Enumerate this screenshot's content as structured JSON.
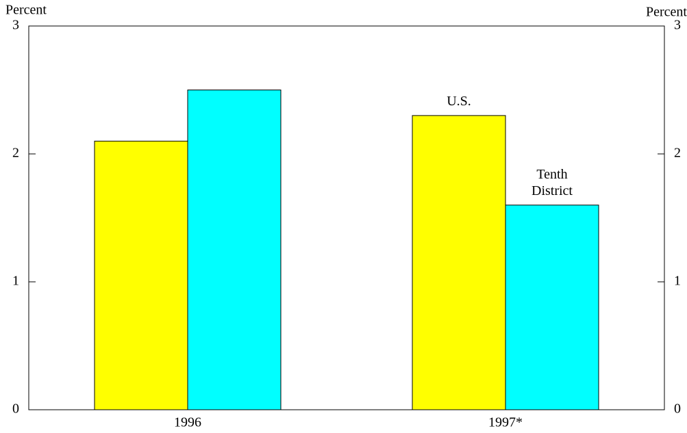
{
  "chart_data": {
    "type": "bar",
    "y_label": "Percent",
    "y2_label": "Percent",
    "categories": [
      "1996",
      "1997*"
    ],
    "series": [
      {
        "name": "U.S.",
        "color": "#ffff00",
        "values": [
          2.1,
          2.3
        ]
      },
      {
        "name": "Tenth District",
        "color": "#00ffff",
        "values": [
          2.5,
          1.6
        ]
      }
    ],
    "ylim": [
      0,
      3
    ],
    "yticks": [
      0,
      1,
      2,
      3
    ],
    "y2lim": [
      0,
      3
    ],
    "y2ticks": [
      0,
      1,
      2,
      3
    ]
  }
}
